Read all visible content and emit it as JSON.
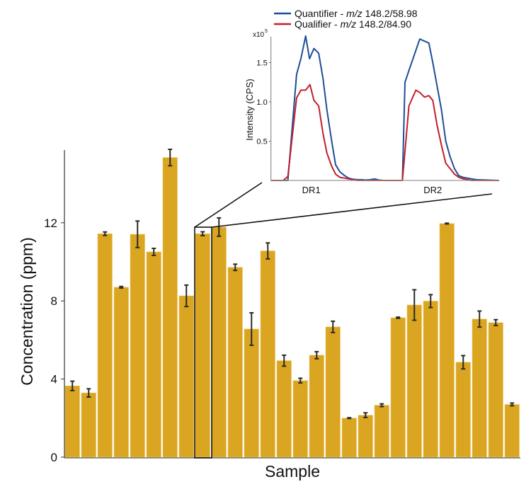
{
  "chart_data": [
    {
      "type": "bar",
      "title": "",
      "xlabel": "Sample",
      "ylabel": "Concentration (ppm)",
      "ylim": [
        0,
        16
      ],
      "yticks": [
        "0",
        "4",
        "8",
        "12"
      ],
      "ytick_values": [
        0,
        4,
        8,
        12
      ],
      "bar_color": "#DAA520",
      "highlighted_bar_index": 8,
      "values": [
        3.65,
        3.29,
        11.44,
        8.7,
        11.41,
        10.51,
        15.34,
        8.26,
        11.44,
        11.78,
        9.72,
        6.56,
        10.56,
        4.94,
        3.92,
        5.22,
        6.67,
        2.0,
        2.15,
        2.66,
        7.14,
        7.79,
        7.99,
        11.96,
        4.86,
        7.07,
        6.89,
        2.7
      ],
      "errors": [
        0.24,
        0.21,
        0.09,
        0.04,
        0.68,
        0.18,
        0.42,
        0.55,
        0.1,
        0.47,
        0.16,
        0.83,
        0.41,
        0.28,
        0.12,
        0.18,
        0.29,
        0.02,
        0.12,
        0.07,
        0.03,
        0.78,
        0.33,
        0.02,
        0.34,
        0.41,
        0.15,
        0.07
      ]
    },
    {
      "type": "line",
      "title": "",
      "ylabel": "Intensity (CPS)",
      "y_multiplier": "x10",
      "y_multiplier_exp": "5",
      "ylim": [
        0,
        1.85
      ],
      "yticks": [
        "0.5",
        "1.0",
        "1.5"
      ],
      "ytick_values": [
        0.5,
        1.0,
        1.5
      ],
      "xlim": [
        0,
        52.6
      ],
      "xcategories": [
        {
          "label": "DR1",
          "x": 9.3
        },
        {
          "label": "DR2",
          "x": 37.3
        }
      ],
      "legend_placement": "top",
      "series": [
        {
          "name": "Quantifier - ",
          "name_italic": "m/z",
          "name_suffix": " 148.2/58.98",
          "color": "#1F4E96",
          "x": [
            0,
            3.9,
            5.9,
            6.9,
            8.0,
            8.9,
            9.9,
            11.0,
            12.0,
            12.9,
            14.0,
            14.9,
            15.9,
            17.0,
            17.9,
            18.9,
            19.9,
            20.9,
            21.9,
            22.9,
            23.9,
            24.9,
            25.9,
            30.3,
            30.9,
            31.8,
            34.3,
            36.4,
            37.3,
            38.3,
            39.3,
            40.3,
            41.3,
            42.3,
            43.3,
            44.3,
            45.3,
            46.3,
            47.4,
            52.6
          ],
          "y": [
            0,
            0,
            1.35,
            1.55,
            1.84,
            1.55,
            1.68,
            1.62,
            1.3,
            0.9,
            0.5,
            0.2,
            0.11,
            0.06,
            0.03,
            0.015,
            0.01,
            0.01,
            0.005,
            0.01,
            0.02,
            0.005,
            0,
            0,
            1.25,
            1.4,
            1.8,
            1.75,
            1.5,
            1.2,
            0.9,
            0.5,
            0.3,
            0.15,
            0.06,
            0.04,
            0.03,
            0.02,
            0.01,
            0
          ]
        },
        {
          "name": "Qualifier - ",
          "name_italic": "m/z",
          "name_suffix": " 148.2/84.90",
          "color": "#C0202A",
          "x": [
            0,
            2.8,
            3.9,
            4.9,
            5.9,
            6.9,
            8.0,
            9.0,
            9.9,
            11.0,
            12.0,
            12.9,
            14.0,
            14.9,
            15.9,
            17.0,
            17.9,
            18.9,
            19.9,
            30.3,
            31.8,
            33.4,
            34.3,
            35.4,
            36.4,
            37.3,
            38.3,
            39.3,
            40.3,
            41.3,
            42.3,
            43.3,
            44.3,
            45.3,
            46.3,
            52.6
          ],
          "y": [
            0,
            0,
            0.05,
            0.55,
            1.05,
            1.15,
            1.15,
            1.22,
            1.02,
            0.95,
            0.6,
            0.35,
            0.18,
            0.08,
            0.04,
            0.03,
            0.02,
            0.01,
            0,
            0,
            0.95,
            1.15,
            1.12,
            1.06,
            1.08,
            1.02,
            0.7,
            0.45,
            0.22,
            0.15,
            0.08,
            0.04,
            0.02,
            0.01,
            0,
            0
          ]
        }
      ]
    }
  ]
}
